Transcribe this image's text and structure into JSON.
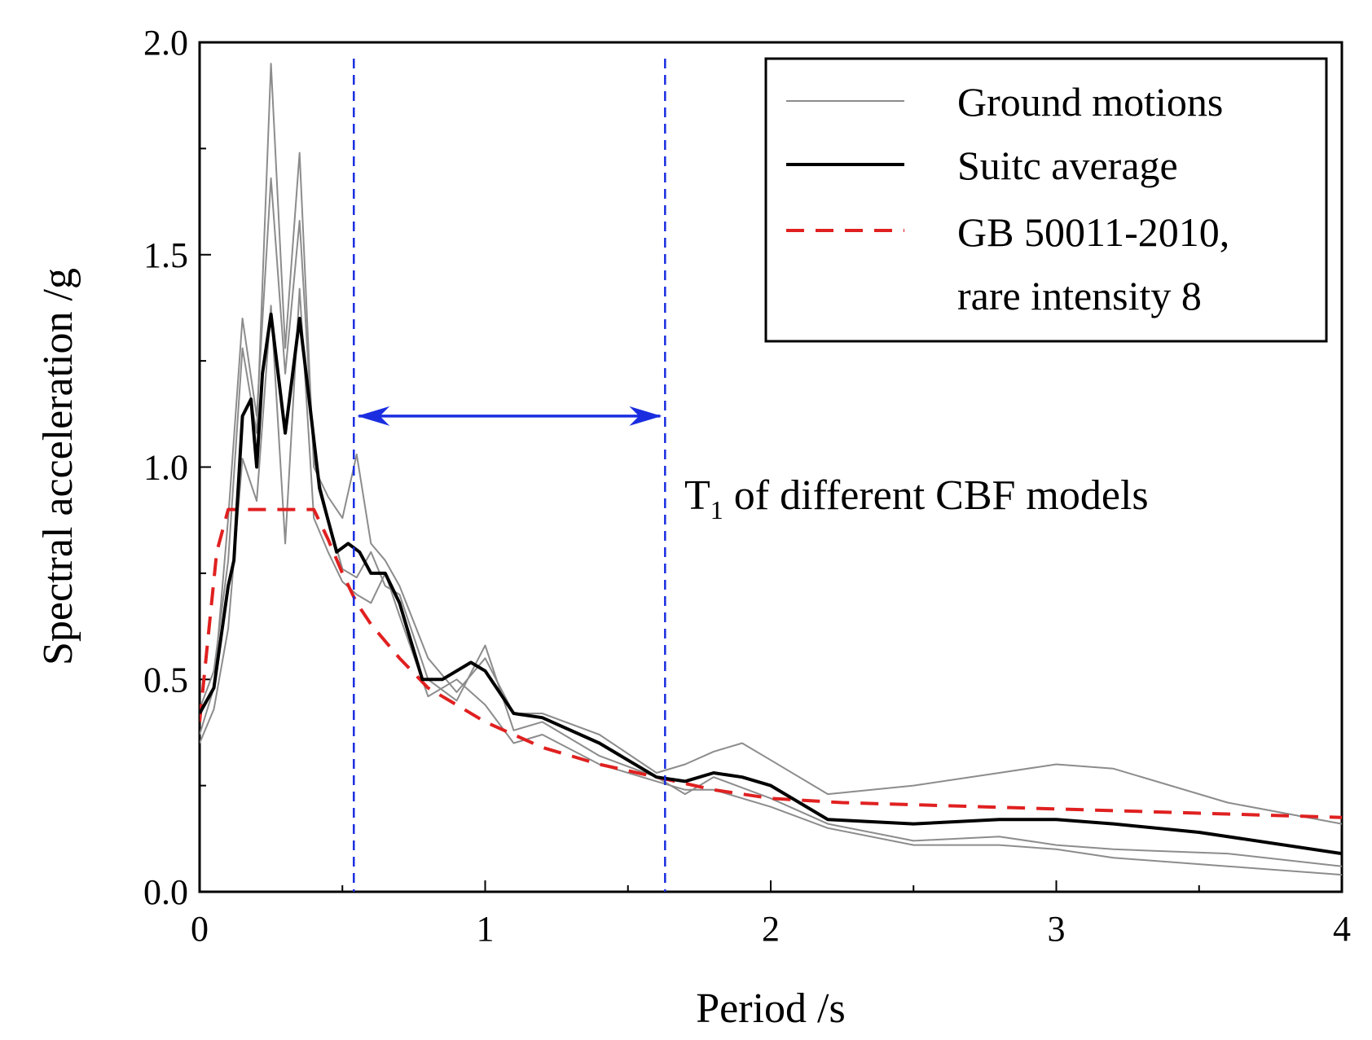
{
  "chart_data": {
    "type": "line",
    "title": "",
    "xlabel": "Period /s",
    "ylabel": "Spectral acceleration /g",
    "xlim": [
      0,
      4
    ],
    "ylim": [
      0,
      2.0
    ],
    "x_ticks": [
      0,
      1,
      2,
      3,
      4
    ],
    "x_tick_labels": [
      "0",
      "1",
      "2",
      "3",
      "4"
    ],
    "y_ticks": [
      0,
      0.5,
      1.0,
      1.5,
      2.0
    ],
    "y_tick_labels": [
      "0.0",
      "0.5",
      "1.0",
      "1.5",
      "2.0"
    ],
    "grid": false,
    "legend": {
      "placement": "top-right",
      "entries": [
        "Ground motions",
        "Suitc average",
        "GB 50011-2010,",
        "rare intensity 8"
      ]
    },
    "colors": {
      "ground": "#8c8c8c",
      "average": "#000000",
      "code": "#e02020",
      "period_lines": "#1a2ee0"
    },
    "series": [
      {
        "name": "Ground motion 1",
        "role": "ground",
        "x": [
          0,
          0.05,
          0.1,
          0.15,
          0.2,
          0.25,
          0.3,
          0.35,
          0.4,
          0.45,
          0.5,
          0.55,
          0.6,
          0.65,
          0.7,
          0.8,
          0.9,
          1.0,
          1.1,
          1.2,
          1.4,
          1.6,
          1.7,
          1.8,
          1.9,
          2.0,
          2.2,
          2.5,
          2.8,
          3.0,
          3.2,
          3.6,
          4.0
        ],
        "y": [
          0.43,
          0.52,
          0.78,
          1.28,
          1.08,
          1.95,
          1.28,
          1.74,
          1.0,
          0.93,
          0.88,
          1.03,
          0.82,
          0.78,
          0.72,
          0.55,
          0.47,
          0.55,
          0.42,
          0.42,
          0.37,
          0.28,
          0.3,
          0.33,
          0.35,
          0.31,
          0.23,
          0.25,
          0.28,
          0.3,
          0.29,
          0.21,
          0.16
        ]
      },
      {
        "name": "Ground motion 2",
        "role": "ground",
        "x": [
          0,
          0.05,
          0.1,
          0.15,
          0.2,
          0.25,
          0.3,
          0.35,
          0.4,
          0.45,
          0.5,
          0.55,
          0.6,
          0.65,
          0.7,
          0.8,
          0.9,
          1.0,
          1.1,
          1.2,
          1.4,
          1.6,
          1.7,
          1.8,
          2.0,
          2.2,
          2.5,
          2.8,
          3.0,
          3.2,
          3.6,
          4.0
        ],
        "y": [
          0.37,
          0.48,
          0.88,
          1.35,
          1.12,
          1.68,
          1.22,
          1.58,
          1.02,
          0.88,
          0.76,
          0.74,
          0.8,
          0.72,
          0.7,
          0.5,
          0.45,
          0.58,
          0.38,
          0.4,
          0.32,
          0.27,
          0.23,
          0.27,
          0.22,
          0.16,
          0.12,
          0.13,
          0.11,
          0.1,
          0.09,
          0.06
        ]
      },
      {
        "name": "Ground motion 3",
        "role": "ground",
        "x": [
          0,
          0.05,
          0.1,
          0.15,
          0.2,
          0.25,
          0.3,
          0.35,
          0.4,
          0.45,
          0.5,
          0.55,
          0.6,
          0.65,
          0.7,
          0.8,
          0.9,
          1.0,
          1.1,
          1.2,
          1.4,
          1.6,
          1.7,
          1.8,
          2.0,
          2.2,
          2.5,
          2.8,
          3.0,
          3.2,
          3.6,
          4.0
        ],
        "y": [
          0.35,
          0.43,
          0.62,
          1.02,
          0.92,
          1.38,
          0.82,
          1.42,
          0.88,
          0.8,
          0.73,
          0.7,
          0.68,
          0.75,
          0.65,
          0.46,
          0.5,
          0.44,
          0.35,
          0.37,
          0.3,
          0.26,
          0.24,
          0.24,
          0.2,
          0.15,
          0.11,
          0.11,
          0.1,
          0.08,
          0.06,
          0.04
        ]
      },
      {
        "name": "Suitc average",
        "role": "average",
        "x": [
          0,
          0.05,
          0.1,
          0.12,
          0.15,
          0.18,
          0.2,
          0.22,
          0.25,
          0.3,
          0.35,
          0.38,
          0.42,
          0.48,
          0.52,
          0.56,
          0.6,
          0.65,
          0.7,
          0.78,
          0.85,
          0.95,
          1.0,
          1.1,
          1.2,
          1.4,
          1.6,
          1.7,
          1.8,
          1.9,
          2.0,
          2.2,
          2.5,
          2.8,
          3.0,
          3.2,
          3.5,
          4.0
        ],
        "y": [
          0.42,
          0.48,
          0.72,
          0.78,
          1.12,
          1.16,
          1.0,
          1.22,
          1.36,
          1.08,
          1.35,
          1.18,
          0.95,
          0.8,
          0.82,
          0.8,
          0.75,
          0.75,
          0.68,
          0.5,
          0.5,
          0.54,
          0.52,
          0.42,
          0.41,
          0.35,
          0.27,
          0.26,
          0.28,
          0.27,
          0.25,
          0.17,
          0.16,
          0.17,
          0.17,
          0.16,
          0.14,
          0.09
        ]
      },
      {
        "name": "GB 50011-2010, rare intensity 8",
        "role": "code",
        "x": [
          0,
          0.03,
          0.06,
          0.1,
          0.15,
          0.2,
          0.3,
          0.4,
          0.45,
          0.5,
          0.55,
          0.6,
          0.7,
          0.8,
          0.9,
          1.0,
          1.2,
          1.4,
          1.6,
          1.8,
          2.0,
          2.25,
          2.5,
          3.0,
          3.5,
          4.0
        ],
        "y": [
          0.4,
          0.6,
          0.8,
          0.9,
          0.9,
          0.9,
          0.9,
          0.9,
          0.83,
          0.75,
          0.68,
          0.63,
          0.55,
          0.48,
          0.44,
          0.4,
          0.34,
          0.3,
          0.27,
          0.24,
          0.22,
          0.21,
          0.205,
          0.195,
          0.185,
          0.175
        ]
      }
    ],
    "vertical_lines": [
      0.54,
      1.63
    ],
    "arrow": {
      "from": 0.54,
      "to": 1.63,
      "y": 1.12
    },
    "annotation": {
      "T": "T",
      "sub": "1",
      "rest": " of  different CBF models"
    }
  }
}
